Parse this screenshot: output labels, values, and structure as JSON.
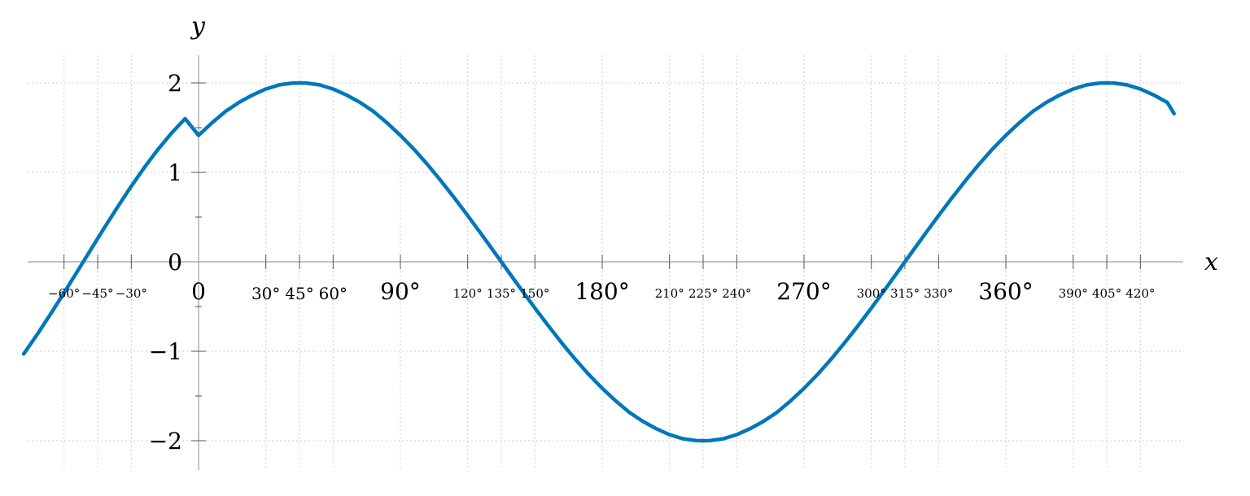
{
  "chart_data": {
    "type": "line",
    "title": "",
    "xlabel": "x",
    "ylabel": "y",
    "xlim": [
      -78,
      435
    ],
    "ylim": [
      -2.3,
      2.3
    ],
    "grid": true,
    "x_ticks": [
      {
        "value": -60,
        "label": "−60°",
        "size": "minor"
      },
      {
        "value": -45,
        "label": "−45°",
        "size": "minor"
      },
      {
        "value": -30,
        "label": "−30°",
        "size": "minor"
      },
      {
        "value": 0,
        "label": "0",
        "size": "zero"
      },
      {
        "value": 30,
        "label": "30°",
        "size": "mid"
      },
      {
        "value": 45,
        "label": "45°",
        "size": "mid"
      },
      {
        "value": 60,
        "label": "60°",
        "size": "mid"
      },
      {
        "value": 90,
        "label": "90°",
        "size": "major"
      },
      {
        "value": 120,
        "label": "120°",
        "size": "minor"
      },
      {
        "value": 135,
        "label": "135°",
        "size": "minor"
      },
      {
        "value": 150,
        "label": "150°",
        "size": "minor"
      },
      {
        "value": 180,
        "label": "180°",
        "size": "major"
      },
      {
        "value": 210,
        "label": "210°",
        "size": "minor"
      },
      {
        "value": 225,
        "label": "225°",
        "size": "minor"
      },
      {
        "value": 240,
        "label": "240°",
        "size": "minor"
      },
      {
        "value": 270,
        "label": "270°",
        "size": "major"
      },
      {
        "value": 300,
        "label": "300°",
        "size": "minor"
      },
      {
        "value": 315,
        "label": "315°",
        "size": "minor"
      },
      {
        "value": 330,
        "label": "330°",
        "size": "minor"
      },
      {
        "value": 360,
        "label": "360°",
        "size": "major"
      },
      {
        "value": 390,
        "label": "390°",
        "size": "minor"
      },
      {
        "value": 405,
        "label": "405°",
        "size": "minor"
      },
      {
        "value": 420,
        "label": "420°",
        "size": "minor"
      }
    ],
    "y_ticks": [
      {
        "value": 2,
        "label": "2"
      },
      {
        "value": 1,
        "label": "1"
      },
      {
        "value": 0,
        "label": "0"
      },
      {
        "value": -1,
        "label": "−1"
      },
      {
        "value": -2,
        "label": "−2"
      }
    ],
    "y_minor_ticks": [
      1.5,
      0.5,
      -0.5,
      -1.5
    ],
    "series": [
      {
        "color": "#0077bb",
        "x": [
          -78,
          -72,
          -66,
          -60,
          -54,
          -48,
          -42,
          -36,
          -30,
          -24,
          -18,
          -12,
          -6,
          0,
          6,
          12,
          18,
          24,
          30,
          36,
          42,
          45,
          48,
          54,
          60,
          66,
          72,
          78,
          84,
          90,
          96,
          102,
          108,
          114,
          120,
          126,
          132,
          135,
          138,
          144,
          150,
          156,
          162,
          168,
          174,
          180,
          186,
          192,
          198,
          204,
          210,
          216,
          222,
          225,
          228,
          234,
          240,
          246,
          252,
          258,
          264,
          270,
          276,
          282,
          288,
          294,
          300,
          306,
          312,
          315,
          318,
          324,
          330,
          336,
          342,
          348,
          354,
          360,
          366,
          372,
          378,
          384,
          390,
          396,
          402,
          405,
          408,
          414,
          420,
          426,
          432,
          435
        ],
        "y": [
          -1.0301,
          -0.8135,
          -0.5842,
          -0.3473,
          -0.1045,
          0.1395,
          0.3813,
          0.618,
          0.8453,
          1.0608,
          1.2601,
          1.4408,
          1.6005,
          1.4142,
          1.5543,
          1.6814,
          1.782,
          1.8646,
          1.9319,
          1.9781,
          1.9986,
          2.0,
          1.9986,
          1.9781,
          1.9319,
          1.8646,
          1.782,
          1.6814,
          1.5543,
          1.4142,
          1.2601,
          1.0898,
          0.908,
          0.7165,
          0.5176,
          0.3129,
          0.1045,
          0.0,
          -0.1045,
          -0.3129,
          -0.5176,
          -0.7165,
          -0.908,
          -1.0898,
          -1.2601,
          -1.4142,
          -1.5543,
          -1.6814,
          -1.782,
          -1.8646,
          -1.9319,
          -1.9781,
          -1.9986,
          -2.0,
          -1.9986,
          -1.9781,
          -1.9319,
          -1.8646,
          -1.782,
          -1.6814,
          -1.5543,
          -1.4142,
          -1.2601,
          -1.0898,
          -0.908,
          -0.7165,
          -0.5176,
          -0.3129,
          -0.1045,
          0.0,
          0.1045,
          0.3129,
          0.5176,
          0.7165,
          0.908,
          1.0898,
          1.2601,
          1.4142,
          1.5543,
          1.6814,
          1.782,
          1.8646,
          1.9319,
          1.9781,
          1.9986,
          2.0,
          1.9986,
          1.9781,
          1.9319,
          1.8646,
          1.782,
          1.6569
        ]
      }
    ]
  }
}
